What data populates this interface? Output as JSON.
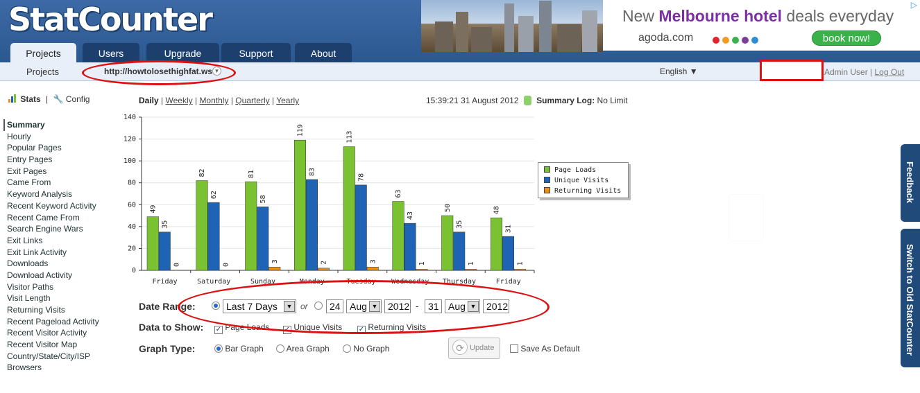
{
  "logo": "StatCounter",
  "tabs": [
    "Projects",
    "Users",
    "Upgrade",
    "Support",
    "About"
  ],
  "ad": {
    "headline_pre": "New ",
    "headline_hl": "Melbourne hotel",
    "headline_post": " deals everyday",
    "url": "agoda.com",
    "button": "book now!",
    "choice": "▷"
  },
  "subnav": {
    "projects": "Projects",
    "project_url": "http://howtolosethighfat.ws",
    "language": "English ▼",
    "user": "Admin User",
    "separator": " | ",
    "logout": "Log Out"
  },
  "sidebar": {
    "stats": "Stats",
    "separator": "|",
    "config": "Config",
    "items": [
      "Summary",
      "Hourly",
      "Popular Pages",
      "Entry Pages",
      "Exit Pages",
      "Came From",
      "Keyword Analysis",
      "Recent Keyword Activity",
      "Recent Came From",
      "Search Engine Wars",
      "Exit Links",
      "Exit Link Activity",
      "Downloads",
      "Download Activity",
      "Visitor Paths",
      "Visit Length",
      "Returning Visits",
      "Recent Pageload Activity",
      "Recent Visitor Activity",
      "Recent Visitor Map",
      "Country/State/City/ISP",
      "Browsers"
    ]
  },
  "period": {
    "daily": "Daily",
    "weekly": "Weekly",
    "monthly": "Monthly",
    "quarterly": "Quarterly",
    "yearly": "Yearly",
    "sep": "|"
  },
  "status": {
    "time": "15:39:21",
    "date": "31 August 2012",
    "log_label": "Summary Log:",
    "log_value": "No Limit"
  },
  "chart_data": {
    "type": "bar",
    "categories": [
      "Friday",
      "Saturday",
      "Sunday",
      "Monday",
      "Tuesday",
      "Wednesday",
      "Thursday",
      "Friday"
    ],
    "series": [
      {
        "name": "Page Loads",
        "color": "#7ac231",
        "values": [
          49,
          82,
          81,
          119,
          113,
          63,
          50,
          48
        ]
      },
      {
        "name": "Unique Visits",
        "color": "#1f64b4",
        "values": [
          35,
          62,
          58,
          83,
          78,
          43,
          35,
          31
        ]
      },
      {
        "name": "Returning Visits",
        "color": "#e8901a",
        "values": [
          0,
          0,
          3,
          2,
          3,
          1,
          1,
          1
        ]
      }
    ],
    "ylim": [
      0,
      140
    ],
    "yticks": [
      0,
      20,
      40,
      60,
      80,
      100,
      120,
      140
    ],
    "legend": "right",
    "grid": true
  },
  "form": {
    "date_range_label": "Date Range:",
    "range_option": "Last 7 Days",
    "or": "or",
    "from_day": "24",
    "from_month": "Aug",
    "from_year": "2012",
    "dash": "-",
    "to_day": "31",
    "to_month": "Aug",
    "to_year": "2012",
    "data_label": "Data to Show:",
    "show": [
      "Page Loads",
      "Unique Visits",
      "Returning Visits"
    ],
    "graph_label": "Graph Type:",
    "graph_types": [
      "Bar Graph",
      "Area Graph",
      "No Graph"
    ],
    "update": "Update",
    "save_default": "Save As Default"
  },
  "side_tabs": {
    "feedback": "Feedback",
    "switch": "Switch to Old StatCounter"
  }
}
